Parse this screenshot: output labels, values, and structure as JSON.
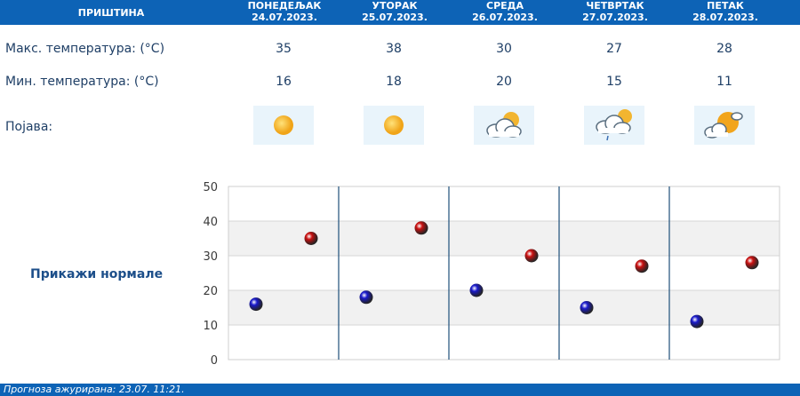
{
  "header": {
    "city": "ПРИШТИНА",
    "days": [
      {
        "name": "ПОНЕДЕЉАК",
        "date": "24.07.2023."
      },
      {
        "name": "УТОРАК",
        "date": "25.07.2023."
      },
      {
        "name": "СРЕДА",
        "date": "26.07.2023."
      },
      {
        "name": "ЧЕТВРТАК",
        "date": "27.07.2023."
      },
      {
        "name": "ПЕТАК",
        "date": "28.07.2023."
      }
    ]
  },
  "rows": {
    "max_label": "Макс. температура: (°C)",
    "min_label": "Мин. температура: (°C)",
    "phenomenon_label": "Појава:",
    "max_values": [
      "35",
      "38",
      "30",
      "27",
      "28"
    ],
    "min_values": [
      "16",
      "18",
      "20",
      "15",
      "11"
    ],
    "icons": [
      "sunny-icon",
      "sunny-icon",
      "partly-cloudy-icon",
      "cloudy-drizzle-icon",
      "partly-cloudy-icon"
    ]
  },
  "normals_link": "Прикажи нормале",
  "footer": {
    "text": "Прогноза ажурирана:  23.07.  11:21."
  },
  "colors": {
    "header_bg": "#0d63b6",
    "max_marker": "#cc1111",
    "min_marker": "#1a1acc"
  },
  "chart_data": {
    "type": "scatter",
    "ylim": [
      0,
      50
    ],
    "yticks": [
      "0",
      "10",
      "20",
      "30",
      "40",
      "50"
    ],
    "categories": [
      "ПОНЕДЕЉАК",
      "УТОРАК",
      "СРЕДА",
      "ЧЕТВРТАК",
      "ПЕТАК"
    ],
    "series": [
      {
        "values": [
          16,
          18,
          20,
          15,
          11
        ]
      },
      {
        "values": [
          35,
          38,
          30,
          27,
          28
        ]
      }
    ],
    "grid": true
  }
}
